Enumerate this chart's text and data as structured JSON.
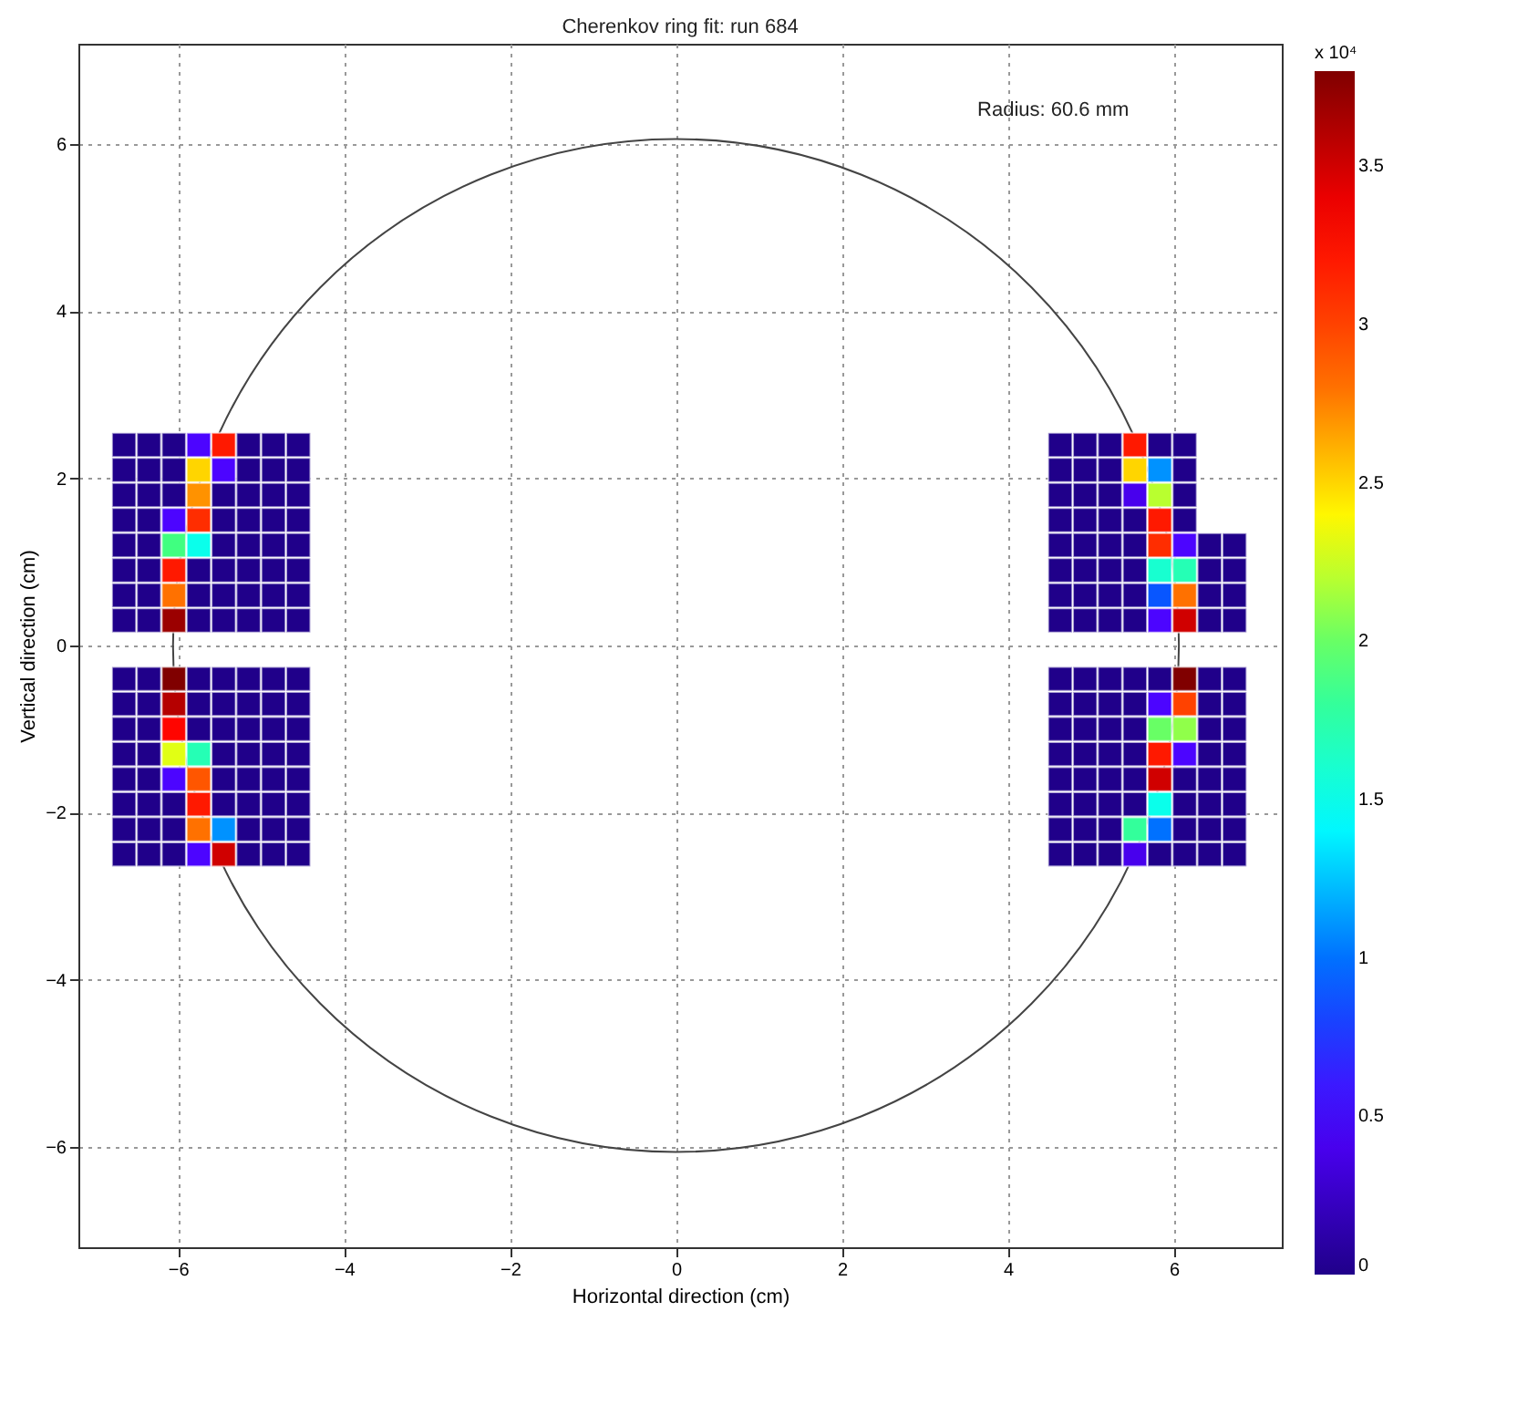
{
  "chart_data": {
    "type": "scatter",
    "title": "Cherenkov ring fit: run 684",
    "xlabel": "Horizontal direction (cm)",
    "ylabel": "Vertical direction (cm)",
    "clabel": "x 10⁴",
    "annotations": [
      "Radius: 60.6 mm"
    ],
    "xlim": [
      -7.2,
      7.3
    ],
    "ylim": [
      -7.2,
      7.2
    ],
    "xticks": [
      -6,
      -4,
      -2,
      0,
      2,
      4,
      6
    ],
    "yticks": [
      -6,
      -4,
      -2,
      0,
      2,
      4,
      6
    ],
    "grid": true,
    "marker": "square",
    "clim": [
      0,
      3.8
    ],
    "cticks": [
      0,
      0.5,
      1,
      1.5,
      2,
      2.5,
      3,
      3.5
    ],
    "x": [
      -6.65,
      -6.35,
      -6.05,
      -5.75,
      -5.45,
      -5.15,
      -4.85,
      -4.55,
      -6.65,
      -6.35,
      -6.05,
      -5.75,
      -5.45,
      -5.15,
      -4.85,
      -4.55,
      -6.65,
      -6.35,
      -6.05,
      -5.75,
      -5.45,
      -5.15,
      -4.85,
      -4.55,
      -6.65,
      -6.35,
      -6.05,
      -5.75,
      -5.45,
      -5.15,
      -4.85,
      -4.55,
      -6.65,
      -6.35,
      -6.05,
      -5.75,
      -5.45,
      -5.15,
      -4.85,
      -4.55,
      -6.65,
      -6.35,
      -6.05,
      -5.75,
      -5.45,
      -5.15,
      -4.85,
      -4.55,
      -6.65,
      -6.35,
      -6.05,
      -5.75,
      -5.45,
      -5.15,
      -4.85,
      -4.55,
      -6.65,
      -6.35,
      -6.05,
      -5.75,
      -5.45,
      -5.15,
      -4.85,
      -4.55,
      -6.65,
      -6.35,
      -6.05,
      -5.75,
      -5.45,
      -5.15,
      -4.85,
      -4.55,
      -6.65,
      -6.35,
      -6.05,
      -5.75,
      -5.45,
      -5.15,
      -4.85,
      -4.55,
      -6.65,
      -6.35,
      -6.05,
      -5.75,
      -5.45,
      -5.15,
      -4.85,
      -4.55,
      -6.65,
      -6.35,
      -6.05,
      -5.75,
      -5.45,
      -5.15,
      -4.85,
      -4.55,
      -6.65,
      -6.35,
      -6.05,
      -5.75,
      -5.45,
      -5.15,
      -4.85,
      -4.55,
      -6.65,
      -6.35,
      -6.05,
      -5.75,
      -5.45,
      -5.15,
      -4.85,
      -4.55,
      -6.65,
      -6.35,
      -6.05,
      -5.75,
      -5.45,
      -5.15,
      -4.85,
      -4.55,
      -6.65,
      -6.35,
      -6.05,
      -5.75,
      -5.45,
      -5.15,
      -4.85,
      -4.55,
      4.63,
      4.93,
      5.23,
      5.53,
      5.83,
      6.13,
      4.63,
      4.93,
      5.23,
      5.53,
      5.83,
      6.13,
      4.63,
      4.93,
      5.23,
      5.53,
      5.83,
      6.13,
      4.63,
      4.93,
      5.23,
      5.53,
      5.83,
      6.13,
      4.63,
      4.93,
      5.23,
      5.53,
      5.83,
      6.13,
      6.43,
      6.73,
      4.63,
      4.93,
      5.23,
      5.53,
      5.83,
      6.13,
      6.43,
      6.73,
      4.63,
      4.93,
      5.23,
      5.53,
      5.83,
      6.13,
      6.43,
      6.73,
      4.63,
      4.93,
      5.23,
      5.53,
      5.83,
      6.13,
      6.43,
      6.73,
      4.63,
      4.93,
      5.23,
      5.53,
      5.83,
      6.13,
      6.43,
      6.73,
      4.63,
      4.93,
      5.23,
      5.53,
      5.83,
      6.13,
      6.43,
      6.73,
      4.63,
      4.93,
      5.23,
      5.53,
      5.83,
      6.13,
      6.43,
      6.73,
      4.63,
      4.93,
      5.23,
      5.53,
      5.83,
      6.13,
      6.43,
      6.73,
      4.63,
      4.93,
      5.23,
      5.53,
      5.83,
      6.13,
      6.43,
      6.73,
      4.63,
      4.93,
      5.23,
      5.53,
      5.83,
      6.13,
      6.43,
      6.73,
      4.63,
      4.93,
      5.23,
      5.53,
      5.83,
      6.13,
      6.43,
      6.73,
      4.63,
      4.93,
      5.23,
      5.53,
      5.83,
      6.13,
      6.43,
      6.73
    ],
    "values": [
      2.4,
      2.4,
      2.4,
      2.4,
      2.4,
      2.4,
      2.4,
      2.4,
      2.1,
      2.1,
      2.1,
      2.1,
      2.1,
      2.1,
      2.1,
      2.1,
      1.8,
      1.8,
      1.8,
      1.8,
      1.8,
      1.8,
      1.8,
      1.8,
      1.5,
      1.5,
      1.5,
      1.5,
      1.5,
      1.5,
      1.5,
      1.5,
      1.2,
      1.2,
      1.2,
      1.2,
      1.2,
      1.2,
      1.2,
      1.2,
      0.9,
      0.9,
      0.9,
      0.9,
      0.9,
      0.9,
      0.9,
      0.9,
      0.6,
      0.6,
      0.6,
      0.6,
      0.6,
      0.6,
      0.6,
      0.6,
      0.3,
      0.3,
      0.3,
      0.3,
      0.3,
      0.3,
      0.3,
      0.3,
      -0.4,
      -0.4,
      -0.4,
      -0.4,
      -0.4,
      -0.4,
      -0.4,
      -0.4,
      -0.7,
      -0.7,
      -0.7,
      -0.7,
      -0.7,
      -0.7,
      -0.7,
      -0.7,
      -1,
      -1,
      -1,
      -1,
      -1,
      -1,
      -1,
      -1,
      -1.3,
      -1.3,
      -1.3,
      -1.3,
      -1.3,
      -1.3,
      -1.3,
      -1.3,
      -1.6,
      -1.6,
      -1.6,
      -1.6,
      -1.6,
      -1.6,
      -1.6,
      -1.6,
      -1.9,
      -1.9,
      -1.9,
      -1.9,
      -1.9,
      -1.9,
      -1.9,
      -1.9,
      -2.2,
      -2.2,
      -2.2,
      -2.2,
      -2.2,
      -2.2,
      -2.2,
      -2.2,
      -2.5,
      -2.5,
      -2.5,
      -2.5,
      -2.5,
      -2.5,
      -2.5,
      -2.5,
      2.4,
      2.4,
      2.4,
      2.4,
      2.4,
      2.4,
      2.1,
      2.1,
      2.1,
      2.1,
      2.1,
      2.1,
      1.8,
      1.8,
      1.8,
      1.8,
      1.8,
      1.8,
      1.5,
      1.5,
      1.5,
      1.5,
      1.5,
      1.5,
      1.2,
      1.2,
      1.2,
      1.2,
      1.2,
      1.2,
      1.2,
      1.2,
      0.9,
      0.9,
      0.9,
      0.9,
      0.9,
      0.9,
      0.9,
      0.9,
      0.6,
      0.6,
      0.6,
      0.6,
      0.6,
      0.6,
      0.6,
      0.6,
      0.3,
      0.3,
      0.3,
      0.3,
      0.3,
      0.3,
      0.3,
      0.3,
      -0.4,
      -0.4,
      -0.4,
      -0.4,
      -0.4,
      -0.4,
      -0.4,
      -0.4,
      -0.7,
      -0.7,
      -0.7,
      -0.7,
      -0.7,
      -0.7,
      -0.7,
      -0.7,
      -1,
      -1,
      -1,
      -1,
      -1,
      -1,
      -1,
      -1,
      -1.3,
      -1.3,
      -1.3,
      -1.3,
      -1.3,
      -1.3,
      -1.3,
      -1.3,
      -1.6,
      -1.6,
      -1.6,
      -1.6,
      -1.6,
      -1.6,
      -1.6,
      -1.6,
      -1.9,
      -1.9,
      -1.9,
      -1.9,
      -1.9,
      -1.9,
      -1.9,
      -1.9,
      -2.2,
      -2.2,
      -2.2,
      -2.2,
      -2.2,
      -2.2,
      -2.2,
      -2.2,
      -2.5,
      -2.5,
      -2.5,
      -2.5,
      -2.5,
      -2.5,
      -2.5,
      -2.5
    ],
    "cvalues": [
      0,
      0,
      0,
      0.5,
      3.2,
      0,
      0,
      0,
      0,
      0,
      0,
      2.5,
      0.5,
      0,
      0,
      0,
      0,
      0,
      0,
      2.7,
      0,
      0,
      0,
      0,
      0,
      0,
      0.5,
      3.1,
      0,
      0,
      0,
      0,
      0,
      0,
      1.9,
      1.5,
      0,
      0,
      0,
      0,
      0,
      0,
      3.2,
      0,
      0,
      0,
      0,
      0,
      0,
      0,
      2.8,
      0,
      0,
      0,
      0,
      0,
      0,
      0,
      3.7,
      0,
      0,
      0,
      0,
      0,
      0,
      0,
      3.8,
      0,
      0,
      0,
      0,
      0,
      0,
      0,
      3.6,
      0,
      0,
      0,
      0,
      0,
      0,
      0,
      3.3,
      0,
      0,
      0,
      0,
      0,
      0,
      0,
      2.3,
      1.7,
      0,
      0,
      0,
      0,
      0,
      0,
      0.5,
      2.9,
      0,
      0,
      0,
      0,
      0,
      0,
      0,
      3.2,
      0,
      0,
      0,
      0,
      0,
      0,
      0,
      2.8,
      1.1,
      0,
      0,
      0,
      0,
      0,
      0,
      0.5,
      3.5,
      0,
      0,
      0,
      0,
      0,
      0,
      3.2,
      0,
      0,
      0,
      0,
      0,
      2.5,
      1.1,
      0,
      0,
      0,
      0,
      0.4,
      2.2,
      0,
      0,
      0,
      0,
      0,
      3.2,
      0,
      0,
      0,
      0,
      0,
      3.1,
      0.5,
      0,
      0,
      0,
      0,
      0,
      0,
      1.6,
      1.7,
      0,
      0,
      0,
      0,
      0,
      0,
      0.9,
      2.8,
      0,
      0,
      0,
      0,
      0,
      0,
      0.5,
      3.5,
      0,
      0,
      0,
      0,
      0,
      0,
      0,
      3.8,
      0,
      0,
      0,
      0,
      0,
      0,
      0.5,
      3,
      0,
      0,
      0,
      0,
      0,
      0,
      2,
      2.1,
      0,
      0,
      0,
      0,
      0,
      0,
      3.2,
      0.5,
      0,
      0,
      0,
      0,
      0,
      0,
      3.5,
      0,
      0,
      0,
      0,
      0,
      0,
      0,
      1.5,
      0,
      0,
      0,
      0,
      0,
      0,
      1.8,
      1,
      0,
      0,
      0,
      0,
      0,
      0,
      0.4,
      0,
      0,
      0,
      0
    ]
  }
}
